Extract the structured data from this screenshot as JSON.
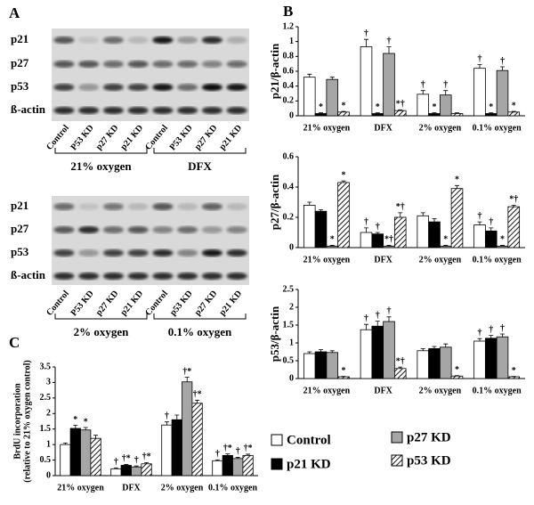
{
  "panels": {
    "A": "A",
    "B": "B",
    "C": "C"
  },
  "blots": [
    {
      "rows": [
        "p21",
        "p27",
        "p53",
        "ß-actin"
      ],
      "lanes": [
        "Control",
        "P53 KD",
        "p27 KD",
        "p21 KD",
        "Control",
        "P53 KD",
        "p27 KD",
        "p21 KD"
      ],
      "groups": [
        "21% oxygen",
        "DFX"
      ]
    },
    {
      "rows": [
        "p21",
        "p27",
        "p53",
        "ß-actin"
      ],
      "lanes": [
        "Control",
        "P53 KD",
        "p27 KD",
        "p21 KD",
        "Control",
        "p53 KD",
        "p27 KD",
        "p21 KD"
      ],
      "groups": [
        "2% oxygen",
        "0.1% oxygen"
      ]
    }
  ],
  "chart_data": [
    {
      "type": "bar",
      "ylabel": "p21/β-actin",
      "categories": [
        "21% oxygen",
        "DFX",
        "2% oxygen",
        "0.1% oxygen"
      ],
      "ylim": [
        0,
        1.2
      ],
      "yticks": [
        0,
        0.2,
        0.4,
        0.6,
        0.8,
        1,
        1.2
      ],
      "series": [
        {
          "name": "Control",
          "color": "#ffffff",
          "values": [
            0.52,
            0.93,
            0.29,
            0.64
          ],
          "errors": [
            0.04,
            0.1,
            0.05,
            0.05
          ],
          "annotations": [
            null,
            "†",
            "†",
            "†"
          ]
        },
        {
          "name": "p21 KD",
          "color": "#000000",
          "values": [
            0.03,
            0.03,
            0.03,
            0.03
          ],
          "errors": [
            0.01,
            0.01,
            0.01,
            0.01
          ],
          "annotations": [
            "*",
            "*",
            "*",
            "*"
          ]
        },
        {
          "name": "p27 KD",
          "color": "#a6a6a6",
          "values": [
            0.49,
            0.84,
            0.28,
            0.61
          ],
          "errors": [
            0.03,
            0.09,
            0.06,
            0.05
          ],
          "annotations": [
            null,
            "†",
            "†",
            "†"
          ]
        },
        {
          "name": "p53 KD",
          "color": "#ffffff",
          "hatch": true,
          "values": [
            0.05,
            0.07,
            0.03,
            0.05
          ],
          "errors": [
            0.01,
            0.01,
            0.01,
            0.01
          ],
          "annotations": [
            "*",
            "*†",
            null,
            "*"
          ]
        }
      ]
    },
    {
      "type": "bar",
      "ylabel": "p27/β-actin",
      "categories": [
        "21% oxygen",
        "DFX",
        "2% oxygen",
        "0.1% oxygen"
      ],
      "ylim": [
        0,
        0.6
      ],
      "yticks": [
        0,
        0.2,
        0.4,
        0.6
      ],
      "series": [
        {
          "name": "Control",
          "color": "#ffffff",
          "values": [
            0.28,
            0.1,
            0.21,
            0.15
          ],
          "errors": [
            0.02,
            0.03,
            0.02,
            0.02
          ],
          "annotations": [
            null,
            "†",
            null,
            "†"
          ]
        },
        {
          "name": "p21 KD",
          "color": "#000000",
          "values": [
            0.24,
            0.09,
            0.17,
            0.11
          ],
          "errors": [
            0.01,
            0.01,
            0.02,
            0.02
          ],
          "annotations": [
            null,
            "†",
            null,
            "†"
          ]
        },
        {
          "name": "p27 KD",
          "color": "#a6a6a6",
          "values": [
            0.01,
            0.01,
            0.01,
            0.01
          ],
          "errors": [
            0.005,
            0.005,
            0.005,
            0.005
          ],
          "annotations": [
            "*",
            "*†",
            "*",
            "*"
          ]
        },
        {
          "name": "p53 KD",
          "color": "#ffffff",
          "hatch": true,
          "values": [
            0.43,
            0.2,
            0.39,
            0.27
          ],
          "errors": [
            0.01,
            0.03,
            0.02,
            0.01
          ],
          "annotations": [
            "*",
            "*†",
            "*",
            "*†"
          ]
        }
      ]
    },
    {
      "type": "bar",
      "ylabel": "p53/β-actin",
      "categories": [
        "21% oxygen",
        "DFX",
        "2% oxygen",
        "0.1% oxygen"
      ],
      "ylim": [
        0,
        2.5
      ],
      "yticks": [
        0,
        0.5,
        1,
        1.5,
        2,
        2.5
      ],
      "series": [
        {
          "name": "Control",
          "color": "#ffffff",
          "values": [
            0.7,
            1.37,
            0.78,
            1.05
          ],
          "errors": [
            0.05,
            0.15,
            0.06,
            0.07
          ],
          "annotations": [
            null,
            "†",
            null,
            "†"
          ]
        },
        {
          "name": "p21 KD",
          "color": "#000000",
          "values": [
            0.75,
            1.47,
            0.84,
            1.13
          ],
          "errors": [
            0.06,
            0.14,
            0.06,
            0.08
          ],
          "annotations": [
            null,
            "†",
            null,
            "†"
          ]
        },
        {
          "name": "p27 KD",
          "color": "#a6a6a6",
          "values": [
            0.73,
            1.6,
            0.88,
            1.17
          ],
          "errors": [
            0.05,
            0.13,
            0.09,
            0.08
          ],
          "annotations": [
            null,
            "†",
            null,
            "†"
          ]
        },
        {
          "name": "p53 KD",
          "color": "#ffffff",
          "hatch": true,
          "values": [
            0.05,
            0.28,
            0.07,
            0.05
          ],
          "errors": [
            0.01,
            0.04,
            0.01,
            0.01
          ],
          "annotations": [
            "*",
            "*†",
            "*",
            "*"
          ]
        }
      ]
    },
    {
      "type": "bar",
      "ylabel": [
        "BrdU incorporation",
        "(relative to 21% oxygen control)"
      ],
      "categories": [
        "21% oxygen",
        "DFX",
        "2% oxygen",
        "0.1% oxygen"
      ],
      "ylim": [
        0,
        3.5
      ],
      "yticks": [
        0,
        0.5,
        1,
        1.5,
        2,
        2.5,
        3,
        3.5
      ],
      "series": [
        {
          "name": "Control",
          "color": "#ffffff",
          "values": [
            1.0,
            0.22,
            1.63,
            0.48
          ],
          "errors": [
            0.05,
            0.03,
            0.1,
            0.03
          ],
          "annotations": [
            null,
            "†",
            "†",
            "†"
          ]
        },
        {
          "name": "p21 KD",
          "color": "#000000",
          "values": [
            1.52,
            0.33,
            1.8,
            0.65
          ],
          "errors": [
            0.1,
            0.03,
            0.15,
            0.05
          ],
          "annotations": [
            "*",
            "†*",
            null,
            "†*"
          ]
        },
        {
          "name": "p27 KD",
          "color": "#a6a6a6",
          "values": [
            1.47,
            0.28,
            3.02,
            0.55
          ],
          "errors": [
            0.08,
            0.03,
            0.15,
            0.04
          ],
          "annotations": [
            "*",
            "†",
            "†*",
            "†"
          ]
        },
        {
          "name": "p53 KD",
          "color": "#ffffff",
          "hatch": true,
          "values": [
            1.2,
            0.38,
            2.33,
            0.65
          ],
          "errors": [
            0.1,
            0.04,
            0.1,
            0.04
          ],
          "annotations": [
            null,
            "†*",
            "†*",
            "†*"
          ]
        }
      ]
    }
  ]
}
